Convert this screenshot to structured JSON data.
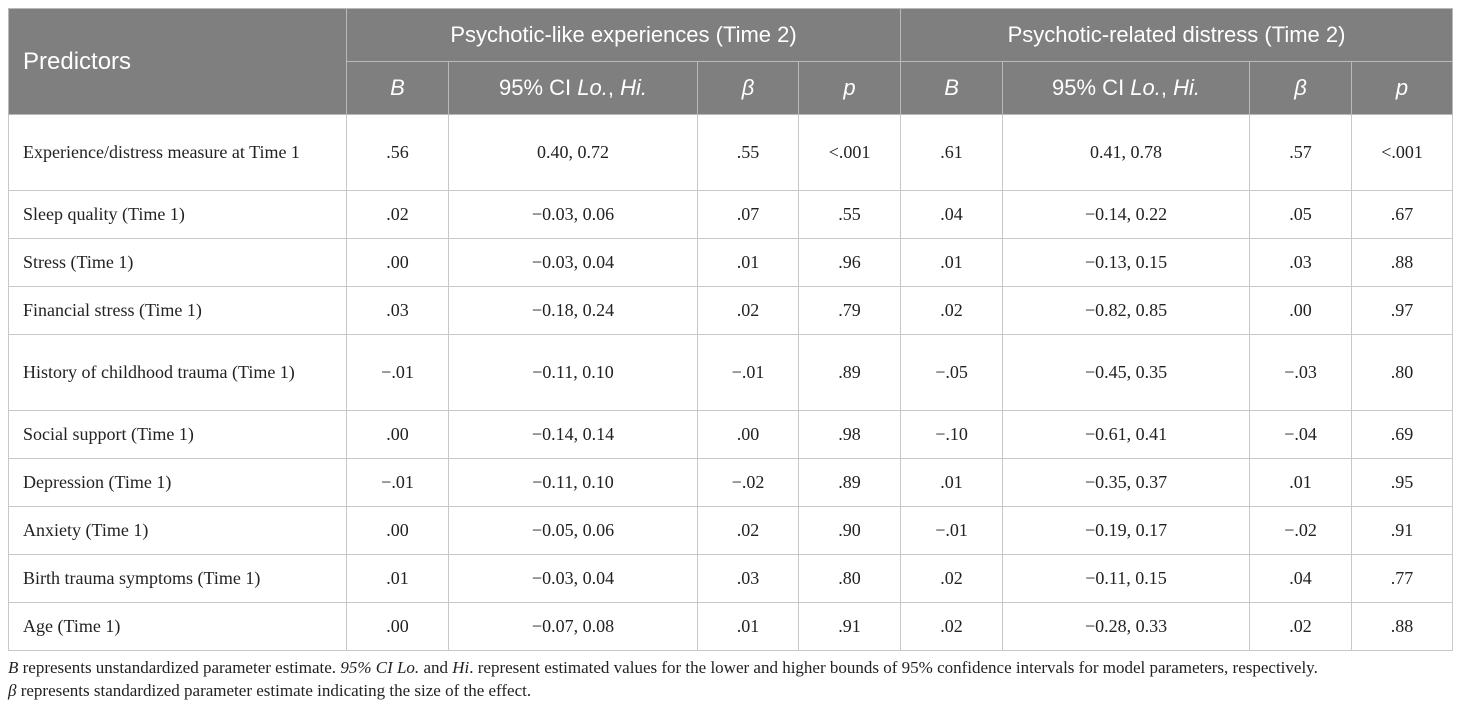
{
  "header": {
    "predictors": "Predictors",
    "group1": "Psychotic-like experiences (Time 2)",
    "group2": "Psychotic-related distress (Time 2)",
    "col_b": "B",
    "col_ci_prefix": "95% CI ",
    "col_ci_lo": "Lo.",
    "col_ci_sep": ", ",
    "col_ci_hi": "Hi.",
    "col_beta": "β",
    "col_p": "p"
  },
  "rows": [
    {
      "label": "Experience/distress measure at Time 1",
      "e_b": ".56",
      "e_ci": "0.40, 0.72",
      "e_beta": ".55",
      "e_p": "<.001",
      "d_b": ".61",
      "d_ci": "0.41, 0.78",
      "d_beta": ".57",
      "d_p": "<.001"
    },
    {
      "label": "Sleep quality (Time 1)",
      "e_b": ".02",
      "e_ci": "−0.03, 0.06",
      "e_beta": ".07",
      "e_p": ".55",
      "d_b": ".04",
      "d_ci": "−0.14, 0.22",
      "d_beta": ".05",
      "d_p": ".67"
    },
    {
      "label": "Stress (Time 1)",
      "e_b": ".00",
      "e_ci": "−0.03, 0.04",
      "e_beta": ".01",
      "e_p": ".96",
      "d_b": ".01",
      "d_ci": "−0.13, 0.15",
      "d_beta": ".03",
      "d_p": ".88"
    },
    {
      "label": "Financial stress (Time 1)",
      "e_b": ".03",
      "e_ci": "−0.18, 0.24",
      "e_beta": ".02",
      "e_p": ".79",
      "d_b": ".02",
      "d_ci": "−0.82, 0.85",
      "d_beta": ".00",
      "d_p": ".97"
    },
    {
      "label": "History of childhood trauma (Time 1)",
      "e_b": "−.01",
      "e_ci": "−0.11, 0.10",
      "e_beta": "−.01",
      "e_p": ".89",
      "d_b": "−.05",
      "d_ci": "−0.45, 0.35",
      "d_beta": "−.03",
      "d_p": ".80"
    },
    {
      "label": "Social support (Time 1)",
      "e_b": ".00",
      "e_ci": "−0.14, 0.14",
      "e_beta": ".00",
      "e_p": ".98",
      "d_b": "−.10",
      "d_ci": "−0.61, 0.41",
      "d_beta": "−.04",
      "d_p": ".69"
    },
    {
      "label": "Depression (Time 1)",
      "e_b": "−.01",
      "e_ci": "−0.11, 0.10",
      "e_beta": "−.02",
      "e_p": ".89",
      "d_b": ".01",
      "d_ci": "−0.35, 0.37",
      "d_beta": ".01",
      "d_p": ".95"
    },
    {
      "label": "Anxiety (Time 1)",
      "e_b": ".00",
      "e_ci": "−0.05, 0.06",
      "e_beta": ".02",
      "e_p": ".90",
      "d_b": "−.01",
      "d_ci": "−0.19, 0.17",
      "d_beta": "−.02",
      "d_p": ".91"
    },
    {
      "label": "Birth trauma symptoms (Time 1)",
      "e_b": ".01",
      "e_ci": "−0.03, 0.04",
      "e_beta": ".03",
      "e_p": ".80",
      "d_b": ".02",
      "d_ci": "−0.11, 0.15",
      "d_beta": ".04",
      "d_p": ".77"
    },
    {
      "label": "Age (Time 1)",
      "e_b": ".00",
      "e_ci": "−0.07, 0.08",
      "e_beta": ".01",
      "e_p": ".91",
      "d_b": ".02",
      "d_ci": "−0.28, 0.33",
      "d_beta": ".02",
      "d_p": ".88"
    }
  ],
  "note": {
    "b": "B",
    "t1": " represents unstandardized parameter estimate. ",
    "ci_lo": "95% CI Lo.",
    "t2": " and ",
    "hi": "Hi",
    "t3": ". represent estimated values for the lower and higher bounds of 95% confidence intervals for model parameters, respectively.",
    "beta": "β",
    "t4": " represents standardized parameter estimate indicating the size of the effect."
  },
  "colors": {
    "header_bg": "#7f7f7f",
    "header_text": "#ffffff",
    "border": "#c8c8c8"
  }
}
